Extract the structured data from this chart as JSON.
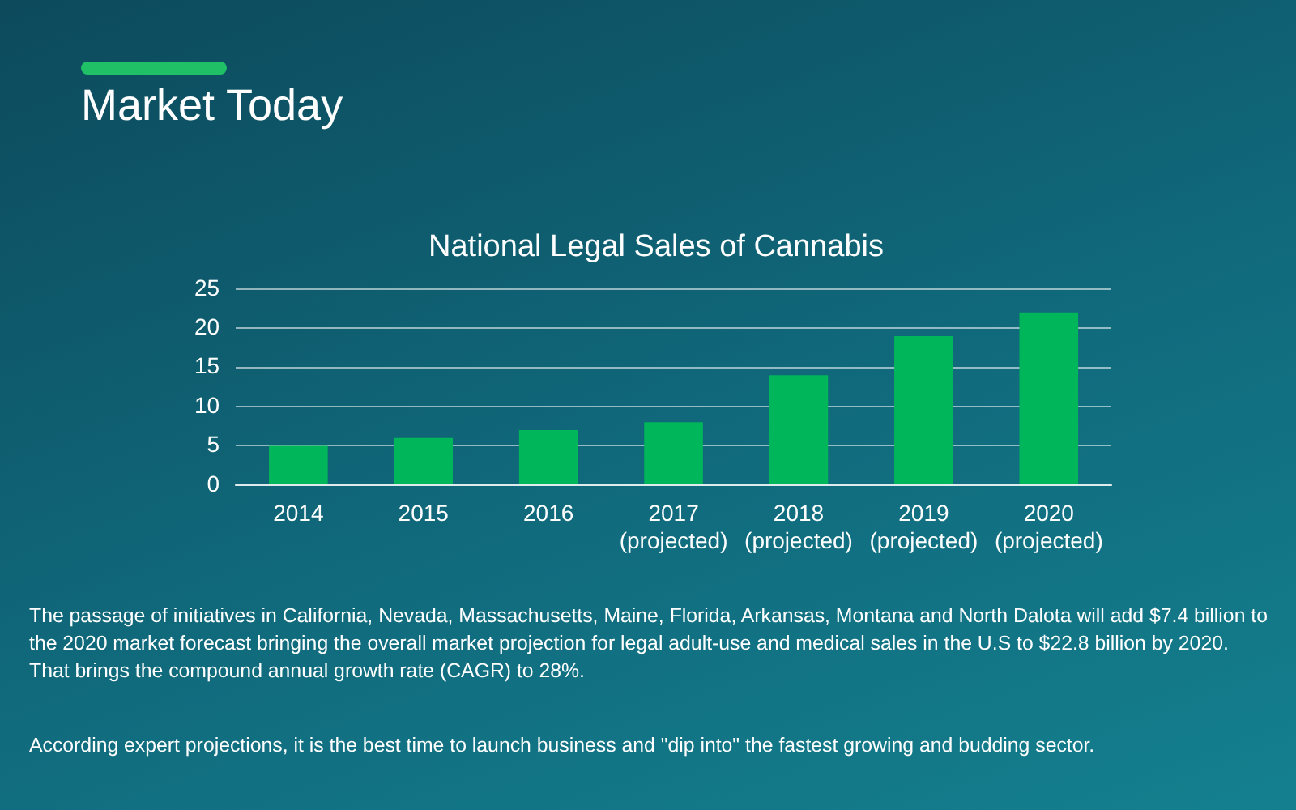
{
  "chart_data": {
    "type": "bar",
    "title": "Market Today",
    "subtitle": "National Legal Sales of Cannabis",
    "categories": [
      "2014",
      "2015",
      "2016",
      "2017\n(projected)",
      "2018\n(projected)",
      "2019\n(projected)",
      "2020\n(projected)"
    ],
    "values": [
      5,
      6,
      7,
      8,
      14,
      19,
      22
    ],
    "color": "#00b65a",
    "ylim": [
      0,
      25
    ],
    "yticks": [
      0,
      5,
      10,
      15,
      20,
      25
    ],
    "grid": "y",
    "annotations": [
      "The passage of initiatives in California, Nevada, Massachusetts, Maine, Florida, Arkansas, Montana and North Dalota will add $7.4 billion to the 2020 market forecast bringing the overall market projection for legal adult-use and medical sales in the U.S to $22.8 billion by 2020. That brings the compound annual growth rate (CAGR) to 28%.",
      "According expert projections, it is the best time to launch business and \"dip into\" the fastest growing and budding sector."
    ]
  }
}
